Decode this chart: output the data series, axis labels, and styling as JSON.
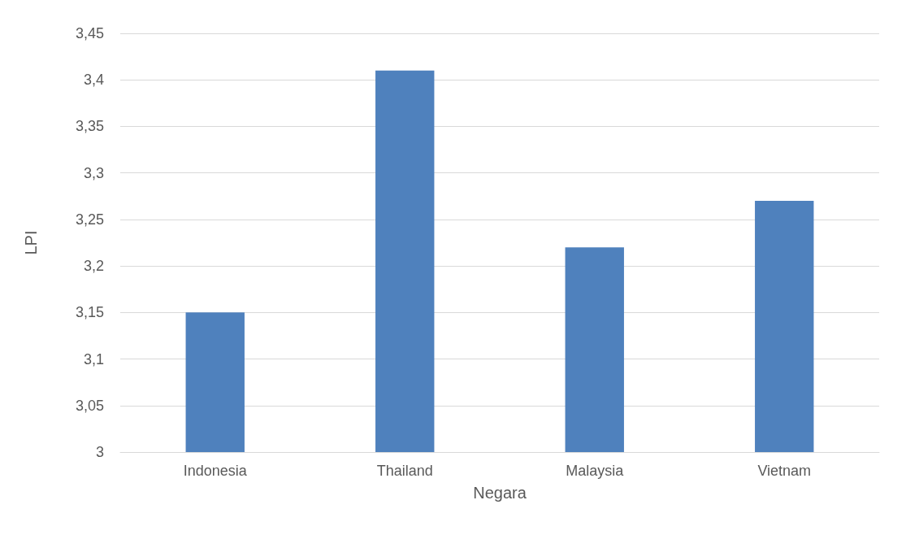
{
  "chart_data": {
    "type": "bar",
    "xlabel": "Negara",
    "ylabel": "LPI",
    "categories": [
      "Indonesia",
      "Thailand",
      "Malaysia",
      "Vietnam"
    ],
    "values": [
      3.15,
      3.41,
      3.22,
      3.27
    ],
    "color": "#4f81bd",
    "ylim": [
      3,
      3.45
    ],
    "yticks": [
      3,
      {
        "value": 3.05,
        "label": "3,05"
      },
      {
        "value": 3.1,
        "label": "3,1"
      },
      {
        "value": 3.15,
        "label": "3,15"
      },
      {
        "value": 3.2,
        "label": "3,2"
      },
      {
        "value": 3.25,
        "label": "3,25"
      },
      {
        "value": 3.3,
        "label": "3,3"
      },
      {
        "value": 3.35,
        "label": "3,35"
      },
      {
        "value": 3.4,
        "label": "3,4"
      },
      {
        "value": 3.45,
        "label": "3,45"
      }
    ],
    "grid": "y"
  }
}
